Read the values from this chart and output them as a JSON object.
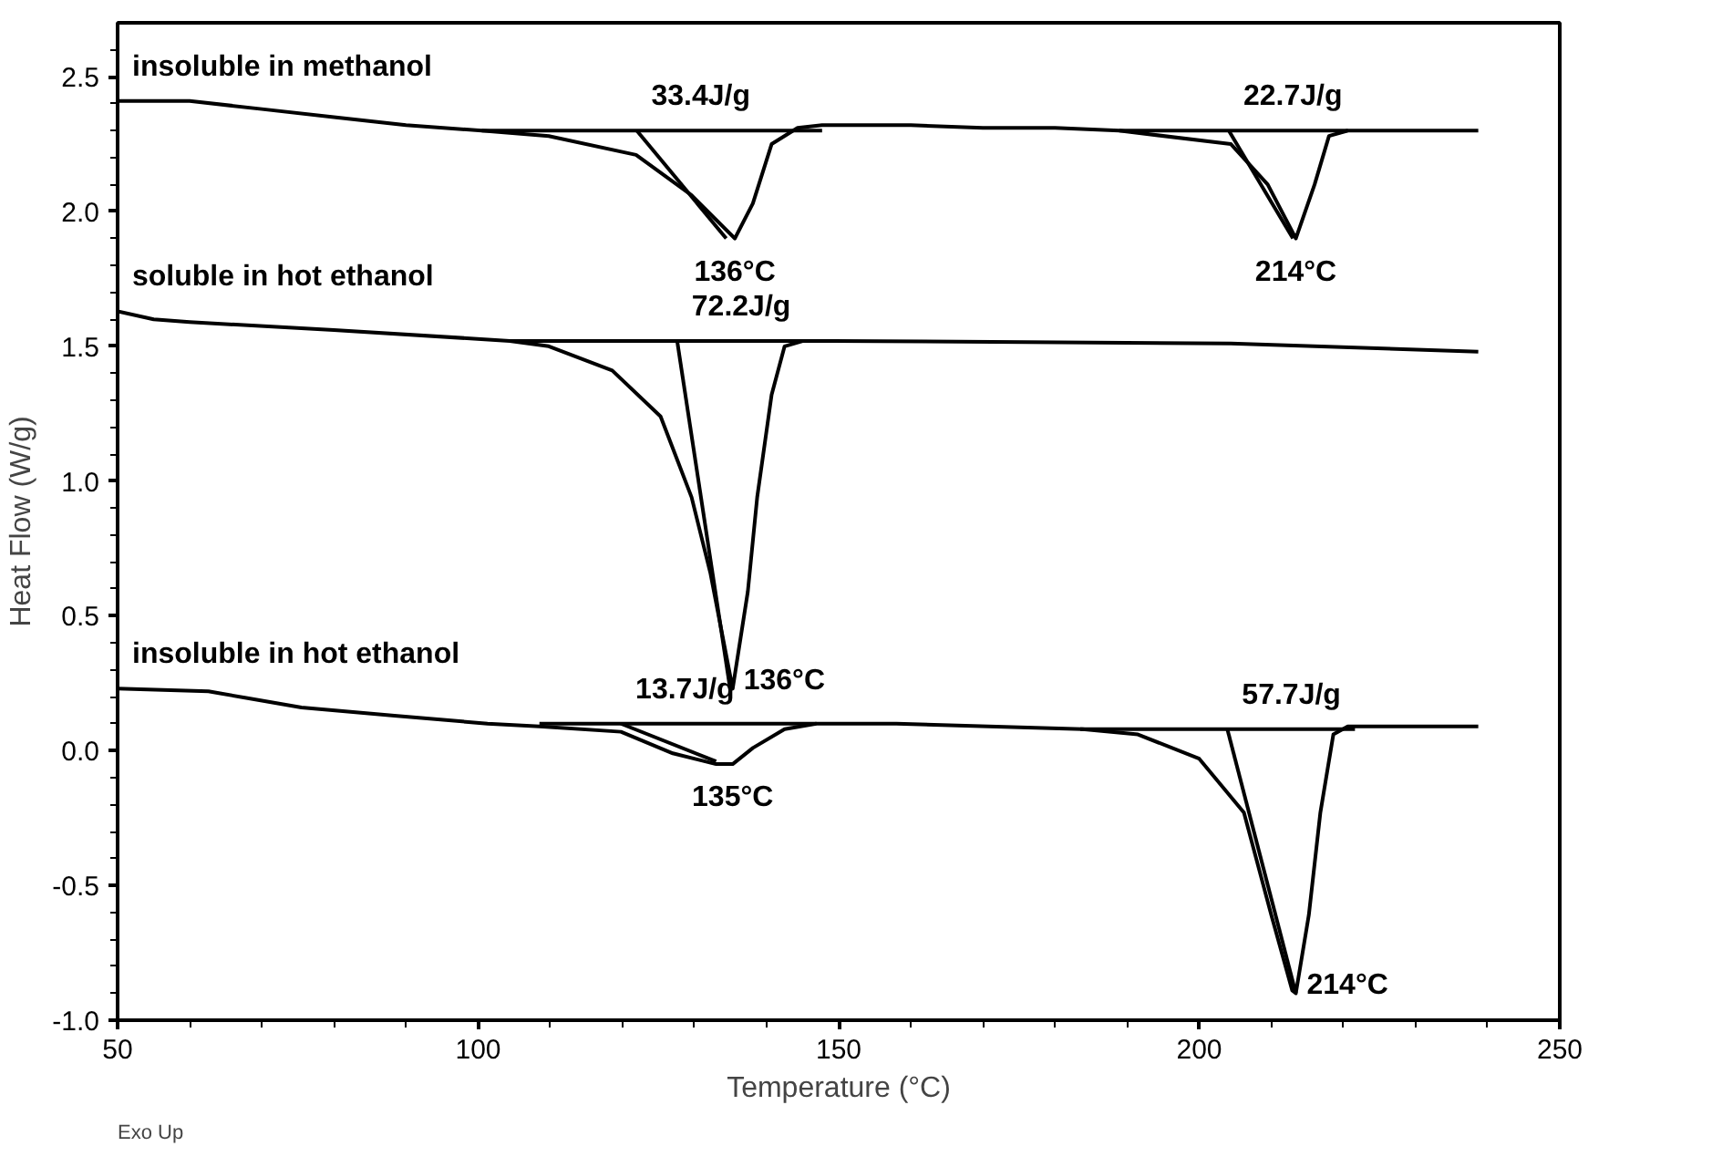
{
  "chart_data": {
    "type": "line",
    "xlabel": "Temperature (°C)",
    "ylabel": "Heat Flow (W/g)",
    "xlim": [
      50,
      250
    ],
    "ylim": [
      -1.0,
      2.7
    ],
    "xticks": [
      50,
      {
        "value": 60,
        "label": null
      },
      {
        "value": 70,
        "label": null
      },
      {
        "value": 80,
        "label": null
      },
      {
        "value": 90,
        "label": null
      },
      100,
      {
        "value": 110,
        "label": null
      },
      {
        "value": 120,
        "label": null
      },
      {
        "value": 130,
        "label": null
      },
      {
        "value": 140,
        "label": null
      },
      150,
      {
        "value": 160,
        "label": null
      },
      {
        "value": 170,
        "label": null
      },
      {
        "value": 180,
        "label": null
      },
      {
        "value": 190,
        "label": null
      },
      200,
      {
        "value": 210,
        "label": null
      },
      {
        "value": 220,
        "label": null
      },
      {
        "value": 230,
        "label": null
      },
      {
        "value": 240,
        "label": null
      },
      250
    ],
    "yticks": [
      {
        "value": -1.0,
        "label": "-1.0"
      },
      {
        "value": -0.9,
        "label": null
      },
      {
        "value": -0.8,
        "label": null
      },
      {
        "value": -0.7,
        "label": null
      },
      {
        "value": -0.6,
        "label": null
      },
      -0.5,
      {
        "value": -0.4,
        "label": null
      },
      {
        "value": -0.3,
        "label": null
      },
      {
        "value": -0.2,
        "label": null
      },
      {
        "value": -0.1,
        "label": null
      },
      {
        "value": 0.0,
        "label": "0.0"
      },
      {
        "value": 0.1,
        "label": null
      },
      {
        "value": 0.2,
        "label": null
      },
      {
        "value": 0.3,
        "label": null
      },
      {
        "value": 0.4,
        "label": null
      },
      0.5,
      {
        "value": 0.6,
        "label": null
      },
      {
        "value": 0.7,
        "label": null
      },
      {
        "value": 0.8,
        "label": null
      },
      {
        "value": 0.9,
        "label": null
      },
      {
        "value": 1.0,
        "label": "1.0"
      },
      {
        "value": 1.1,
        "label": null
      },
      {
        "value": 1.2,
        "label": null
      },
      {
        "value": 1.3,
        "label": null
      },
      {
        "value": 1.4,
        "label": null
      },
      1.5,
      {
        "value": 1.6,
        "label": null
      },
      {
        "value": 1.7,
        "label": null
      },
      {
        "value": 1.8,
        "label": null
      },
      {
        "value": 1.9,
        "label": null
      },
      {
        "value": 2.0,
        "label": "2.0"
      },
      {
        "value": 2.1,
        "label": null
      },
      {
        "value": 2.2,
        "label": null
      },
      {
        "value": 2.3,
        "label": null
      },
      {
        "value": 2.4,
        "label": null
      },
      2.5,
      {
        "value": 2.6,
        "label": null
      }
    ],
    "grid": false,
    "line_style": "solid",
    "series": [
      {
        "color": "#000000",
        "x": [
          50,
          60,
          70,
          80,
          90,
          100.5,
          109.8,
          121.9,
          129.6,
          135.6,
          138.1,
          140.7,
          144.3,
          147.7,
          160,
          170,
          180,
          188.9,
          204.4,
          209.5,
          213.4,
          216,
          218,
          220.6,
          238.7
        ],
        "values": [
          2.41,
          2.41,
          2.38,
          2.35,
          2.32,
          2.3,
          2.28,
          2.21,
          2.06,
          1.9,
          2.03,
          2.25,
          2.31,
          2.32,
          2.32,
          2.31,
          2.31,
          2.3,
          2.25,
          2.1,
          1.9,
          2.1,
          2.28,
          2.3,
          2.3
        ]
      },
      {
        "color": "#000000",
        "x": [
          50,
          55,
          60,
          80,
          104.4,
          109.8,
          118.6,
          125.3,
          129.6,
          132.2,
          135.3,
          137.4,
          138.7,
          140.7,
          142.5,
          145.1,
          149.2,
          204.4,
          238.7
        ],
        "values": [
          1.63,
          1.6,
          1.59,
          1.56,
          1.52,
          1.5,
          1.41,
          1.24,
          0.94,
          0.66,
          0.23,
          0.59,
          0.94,
          1.32,
          1.5,
          1.52,
          1.52,
          1.51,
          1.48
        ]
      },
      {
        "color": "#000000",
        "x": [
          50,
          62.6,
          75.5,
          88.4,
          101.3,
          108.5,
          119.8,
          127,
          133,
          135.3,
          138.1,
          142.5,
          146.9,
          158,
          183.8,
          191.5,
          200,
          206.2,
          210,
          212.9,
          213.4,
          215.2,
          216.8,
          218.6,
          220.6,
          238.7
        ],
        "values": [
          0.23,
          0.22,
          0.16,
          0.13,
          0.1,
          0.09,
          0.07,
          -0.01,
          -0.05,
          -0.05,
          0.01,
          0.08,
          0.1,
          0.1,
          0.08,
          0.06,
          -0.03,
          -0.23,
          -0.61,
          -0.89,
          -0.9,
          -0.61,
          -0.23,
          0.06,
          0.09,
          0.09
        ]
      },
      {
        "color": "#000000",
        "x": [
          100.5,
          147.7
        ],
        "values": [
          2.3,
          2.3
        ]
      },
      {
        "color": "#000000",
        "x": [
          122,
          134.4
        ],
        "values": [
          2.3,
          1.9
        ]
      },
      {
        "color": "#000000",
        "x": [
          188.9,
          220.6
        ],
        "values": [
          2.3,
          2.3
        ]
      },
      {
        "color": "#000000",
        "x": [
          204.1,
          213
        ],
        "values": [
          2.3,
          1.9
        ]
      },
      {
        "color": "#000000",
        "x": [
          104.4,
          149.2
        ],
        "values": [
          1.52,
          1.52
        ]
      },
      {
        "color": "#000000",
        "x": [
          127.6,
          135
        ],
        "values": [
          1.52,
          0.22
        ]
      },
      {
        "color": "#000000",
        "x": [
          108.5,
          146.9
        ],
        "values": [
          0.1,
          0.1
        ]
      },
      {
        "color": "#000000",
        "x": [
          119.8,
          133
        ],
        "values": [
          0.1,
          -0.04
        ]
      },
      {
        "color": "#000000",
        "x": [
          183.5,
          221.6
        ],
        "values": [
          0.08,
          0.08
        ]
      },
      {
        "color": "#000000",
        "x": [
          203.9,
          213.4
        ],
        "values": [
          0.08,
          -0.9
        ]
      }
    ],
    "annotations": [
      {
        "text": "insoluble in methanol",
        "x": 50,
        "y": 2.41
      },
      {
        "text": "soluble in hot ethanol",
        "x": 50,
        "y": 1.63
      },
      {
        "text": "insoluble in hot ethanol",
        "x": 50,
        "y": 0.23
      },
      {
        "text": "33.4J/g",
        "x": 122,
        "y": 2.3
      },
      {
        "text": "136°C",
        "x": 135.6,
        "y": 1.9
      },
      {
        "text": "22.7J/g",
        "x": 204.1,
        "y": 2.3
      },
      {
        "text": "214°C",
        "x": 213.4,
        "y": 1.9
      },
      {
        "text": "72.2J/g",
        "x": 127.6,
        "y": 1.52
      },
      {
        "text": "136°C",
        "x": 135.3,
        "y": 0.23
      },
      {
        "text": "13.7J/g",
        "x": 119.8,
        "y": 0.1
      },
      {
        "text": "135°C",
        "x": 135.3,
        "y": -0.05
      },
      {
        "text": "57.7J/g",
        "x": 203.9,
        "y": 0.08
      },
      {
        "text": "214°C",
        "x": 213.4,
        "y": -0.9
      },
      "Exo Up"
    ]
  }
}
